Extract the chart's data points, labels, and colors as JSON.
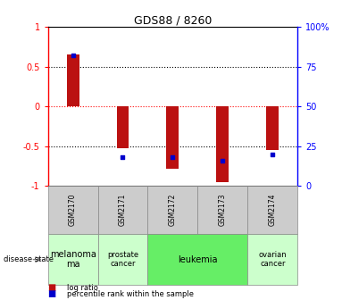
{
  "title": "GDS88 / 8260",
  "samples": [
    "GSM2170",
    "GSM2171",
    "GSM2172",
    "GSM2173",
    "GSM2174"
  ],
  "log_ratios": [
    0.65,
    -0.52,
    -0.78,
    -0.95,
    -0.55
  ],
  "percentile_ranks": [
    82,
    18,
    18,
    16,
    20
  ],
  "bar_color": "#BB1111",
  "percentile_color": "#0000CC",
  "ylim": [
    -1,
    1
  ],
  "y2lim": [
    0,
    100
  ],
  "yticks": [
    -1,
    -0.5,
    0,
    0.5,
    1
  ],
  "y2ticks": [
    0,
    25,
    50,
    75,
    100
  ],
  "ytick_labels": [
    "-1",
    "-0.5",
    "0",
    "0.5",
    "1"
  ],
  "y2tick_labels": [
    "0",
    "25",
    "50",
    "75",
    "100%"
  ],
  "disease_groups": [
    {
      "label": "melanoma\nma",
      "indices": [
        0
      ],
      "color": "#CCFFCC",
      "fontsize": 7
    },
    {
      "label": "prostate\ncancer",
      "indices": [
        1
      ],
      "color": "#CCFFCC",
      "fontsize": 6
    },
    {
      "label": "leukemia",
      "indices": [
        2,
        3
      ],
      "color": "#66EE66",
      "fontsize": 7
    },
    {
      "label": "ovarian\ncancer",
      "indices": [
        4
      ],
      "color": "#CCFFCC",
      "fontsize": 6
    }
  ],
  "legend_log_label": "log ratio",
  "legend_pct_label": "percentile rank within the sample",
  "disease_label": "disease state"
}
